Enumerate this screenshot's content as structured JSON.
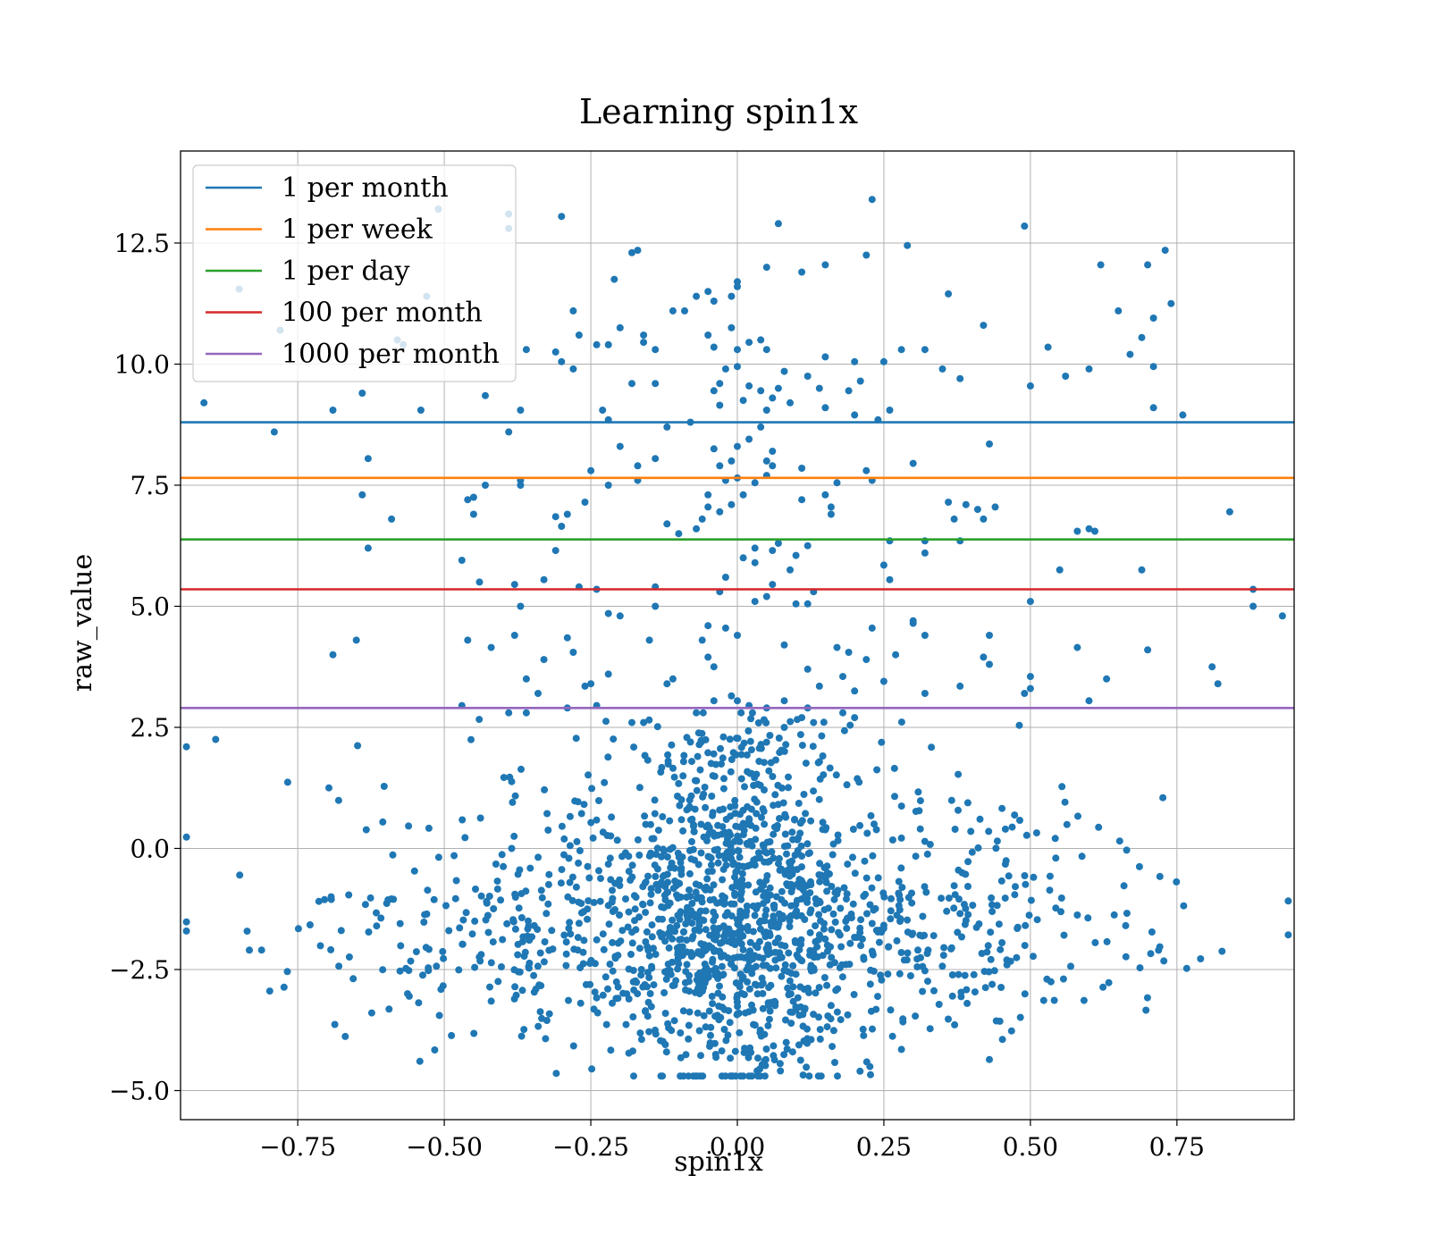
{
  "chart_data": {
    "type": "scatter",
    "title": "Learning spin1x",
    "xlabel": "spin1x",
    "ylabel": "raw_value",
    "xlim": [
      -0.95,
      0.95
    ],
    "ylim": [
      -5.6,
      14.4
    ],
    "grid": true,
    "legend_position": "top-left",
    "x_ticks": [
      -0.75,
      -0.5,
      -0.25,
      0.0,
      0.25,
      0.5,
      0.75
    ],
    "x_tick_labels": [
      "−0.75",
      "−0.50",
      "−0.25",
      "0.00",
      "0.25",
      "0.50",
      "0.75"
    ],
    "y_ticks": [
      -5.0,
      -2.5,
      0.0,
      2.5,
      5.0,
      7.5,
      10.0,
      12.5
    ],
    "y_tick_labels": [
      "−5.0",
      "−2.5",
      "0.0",
      "2.5",
      "5.0",
      "7.5",
      "10.0",
      "12.5"
    ],
    "scatter_color": "#1f77b4",
    "point_count": 2000,
    "points": [
      [
        -0.94,
        2.1
      ],
      [
        -0.89,
        2.25
      ],
      [
        -0.91,
        9.2
      ],
      [
        -0.79,
        8.6
      ],
      [
        -0.85,
        11.55
      ],
      [
        -0.78,
        10.7
      ],
      [
        -0.69,
        9.05
      ],
      [
        -0.64,
        9.4
      ],
      [
        -0.63,
        8.05
      ],
      [
        -0.64,
        7.3
      ],
      [
        -0.63,
        6.2
      ],
      [
        -0.59,
        6.8
      ],
      [
        -0.65,
        4.3
      ],
      [
        -0.69,
        4.0
      ],
      [
        -0.58,
        10.5
      ],
      [
        -0.57,
        10.4
      ],
      [
        -0.54,
        9.05
      ],
      [
        -0.53,
        11.4
      ],
      [
        -0.51,
        13.2
      ],
      [
        -0.39,
        13.1
      ],
      [
        -0.39,
        12.8
      ],
      [
        -0.3,
        13.05
      ],
      [
        -0.43,
        9.35
      ],
      [
        -0.37,
        9.05
      ],
      [
        -0.36,
        10.3
      ],
      [
        -0.31,
        10.25
      ],
      [
        -0.3,
        10.05
      ],
      [
        -0.28,
        9.9
      ],
      [
        -0.28,
        11.1
      ],
      [
        -0.27,
        10.6
      ],
      [
        -0.39,
        8.6
      ],
      [
        -0.37,
        7.6
      ],
      [
        -0.37,
        7.5
      ],
      [
        -0.43,
        7.5
      ],
      [
        -0.46,
        7.2
      ],
      [
        -0.45,
        7.25
      ],
      [
        -0.45,
        6.9
      ],
      [
        -0.47,
        5.95
      ],
      [
        -0.44,
        5.5
      ],
      [
        -0.38,
        5.45
      ],
      [
        -0.37,
        5.0
      ],
      [
        -0.33,
        5.55
      ],
      [
        -0.31,
        6.15
      ],
      [
        -0.31,
        6.85
      ],
      [
        -0.3,
        6.65
      ],
      [
        -0.29,
        6.9
      ],
      [
        -0.26,
        7.15
      ],
      [
        -0.27,
        5.4
      ],
      [
        -0.24,
        5.35
      ],
      [
        -0.42,
        4.15
      ],
      [
        -0.46,
        4.3
      ],
      [
        -0.38,
        4.4
      ],
      [
        -0.33,
        3.9
      ],
      [
        -0.36,
        3.5
      ],
      [
        -0.34,
        3.2
      ],
      [
        -0.29,
        4.35
      ],
      [
        -0.28,
        4.05
      ],
      [
        -0.25,
        3.4
      ],
      [
        -0.26,
        3.35
      ],
      [
        -0.36,
        2.8
      ],
      [
        -0.39,
        2.8
      ],
      [
        -0.47,
        2.95
      ],
      [
        -0.29,
        2.9
      ],
      [
        -0.24,
        2.95
      ],
      [
        -0.22,
        3.6
      ],
      [
        -0.24,
        10.4
      ],
      [
        -0.22,
        10.4
      ],
      [
        -0.23,
        9.05
      ],
      [
        -0.22,
        8.85
      ],
      [
        -0.21,
        11.75
      ],
      [
        -0.2,
        10.75
      ],
      [
        -0.18,
        12.3
      ],
      [
        -0.17,
        12.35
      ],
      [
        -0.16,
        10.45
      ],
      [
        -0.16,
        10.6
      ],
      [
        -0.14,
        10.3
      ],
      [
        -0.11,
        11.1
      ],
      [
        -0.09,
        11.1
      ],
      [
        -0.07,
        11.4
      ],
      [
        -0.05,
        11.5
      ],
      [
        -0.04,
        11.3
      ],
      [
        -0.01,
        11.4
      ],
      [
        0.0,
        11.7
      ],
      [
        0.0,
        11.6
      ],
      [
        -0.05,
        10.6
      ],
      [
        -0.04,
        10.35
      ],
      [
        -0.01,
        10.75
      ],
      [
        0.0,
        10.3
      ],
      [
        0.02,
        10.45
      ],
      [
        0.04,
        10.5
      ],
      [
        0.05,
        10.3
      ],
      [
        0.07,
        12.9
      ],
      [
        0.05,
        12.0
      ],
      [
        0.11,
        11.9
      ],
      [
        0.15,
        12.05
      ],
      [
        0.22,
        12.25
      ],
      [
        0.23,
        13.4
      ],
      [
        0.29,
        12.45
      ],
      [
        0.36,
        11.45
      ],
      [
        0.42,
        10.8
      ],
      [
        0.49,
        12.85
      ],
      [
        0.62,
        12.05
      ],
      [
        0.65,
        11.1
      ],
      [
        0.7,
        12.05
      ],
      [
        0.73,
        12.35
      ],
      [
        0.74,
        11.25
      ],
      [
        0.71,
        10.95
      ],
      [
        0.69,
        10.55
      ],
      [
        0.67,
        10.2
      ],
      [
        0.71,
        9.95
      ],
      [
        0.6,
        9.9
      ],
      [
        0.56,
        9.75
      ],
      [
        0.53,
        10.35
      ],
      [
        0.5,
        9.55
      ],
      [
        0.38,
        9.7
      ],
      [
        0.35,
        9.9
      ],
      [
        0.32,
        10.3
      ],
      [
        0.28,
        10.3
      ],
      [
        0.25,
        10.05
      ],
      [
        0.2,
        10.05
      ],
      [
        0.15,
        10.15
      ],
      [
        0.12,
        9.75
      ],
      [
        0.14,
        9.5
      ],
      [
        0.15,
        9.1
      ],
      [
        0.19,
        9.45
      ],
      [
        0.21,
        9.65
      ],
      [
        0.2,
        8.95
      ],
      [
        0.24,
        8.85
      ],
      [
        0.26,
        9.05
      ],
      [
        0.71,
        9.1
      ],
      [
        0.76,
        8.95
      ],
      [
        0.43,
        8.35
      ],
      [
        0.3,
        7.95
      ],
      [
        0.23,
        7.6
      ],
      [
        0.22,
        7.8
      ],
      [
        0.17,
        7.55
      ],
      [
        0.15,
        7.3
      ],
      [
        0.16,
        7.05
      ],
      [
        0.16,
        6.9
      ],
      [
        0.11,
        7.2
      ],
      [
        0.11,
        7.85
      ],
      [
        0.36,
        7.15
      ],
      [
        0.37,
        6.8
      ],
      [
        0.39,
        7.1
      ],
      [
        0.41,
        7.0
      ],
      [
        0.42,
        6.8
      ],
      [
        0.44,
        7.05
      ],
      [
        0.38,
        6.35
      ],
      [
        0.32,
        6.35
      ],
      [
        0.32,
        6.1
      ],
      [
        0.26,
        6.35
      ],
      [
        0.25,
        5.85
      ],
      [
        0.26,
        5.55
      ],
      [
        0.58,
        6.55
      ],
      [
        0.6,
        6.6
      ],
      [
        0.61,
        6.55
      ],
      [
        0.55,
        5.75
      ],
      [
        0.69,
        5.75
      ],
      [
        0.84,
        6.95
      ],
      [
        0.5,
        5.1
      ],
      [
        0.88,
        5.35
      ],
      [
        0.88,
        5.0
      ],
      [
        0.93,
        4.8
      ],
      [
        0.81,
        3.75
      ],
      [
        0.82,
        3.4
      ],
      [
        0.7,
        4.1
      ],
      [
        0.58,
        4.15
      ],
      [
        0.63,
        3.5
      ],
      [
        0.6,
        3.05
      ],
      [
        0.5,
        3.55
      ],
      [
        0.5,
        3.3
      ],
      [
        0.49,
        3.2
      ],
      [
        0.43,
        4.4
      ],
      [
        0.42,
        3.95
      ],
      [
        0.43,
        3.8
      ],
      [
        0.38,
        3.35
      ],
      [
        0.32,
        3.2
      ],
      [
        0.27,
        4.0
      ],
      [
        0.25,
        3.45
      ],
      [
        0.23,
        4.55
      ],
      [
        0.22,
        3.9
      ],
      [
        0.2,
        3.25
      ],
      [
        0.19,
        4.05
      ],
      [
        0.17,
        4.15
      ],
      [
        0.18,
        3.55
      ],
      [
        0.14,
        3.35
      ],
      [
        0.12,
        3.7
      ],
      [
        0.08,
        4.2
      ],
      [
        0.1,
        5.05
      ],
      [
        0.13,
        5.3
      ],
      [
        0.09,
        5.75
      ],
      [
        0.06,
        5.45
      ],
      [
        0.05,
        5.2
      ],
      [
        0.03,
        5.9
      ],
      [
        0.01,
        6.0
      ],
      [
        0.03,
        6.2
      ],
      [
        0.06,
        6.15
      ],
      [
        0.07,
        6.3
      ],
      [
        0.1,
        6.05
      ],
      [
        0.12,
        6.25
      ],
      [
        0.12,
        5.05
      ],
      [
        0.03,
        5.1
      ],
      [
        -0.02,
        5.6
      ],
      [
        -0.03,
        5.3
      ],
      [
        -0.05,
        4.6
      ],
      [
        -0.06,
        4.3
      ],
      [
        -0.05,
        3.95
      ],
      [
        -0.04,
        3.75
      ],
      [
        -0.02,
        4.55
      ],
      [
        0.0,
        4.4
      ],
      [
        -0.04,
        3.05
      ],
      [
        -0.01,
        3.15
      ],
      [
        0.0,
        3.05
      ],
      [
        0.02,
        2.95
      ],
      [
        0.05,
        2.9
      ],
      [
        0.08,
        3.05
      ],
      [
        0.11,
        2.7
      ],
      [
        0.13,
        2.6
      ],
      [
        0.18,
        2.8
      ],
      [
        0.2,
        2.7
      ],
      [
        0.0,
        9.95
      ],
      [
        -0.02,
        9.9
      ],
      [
        -0.03,
        9.6
      ],
      [
        -0.04,
        9.45
      ],
      [
        -0.03,
        9.15
      ],
      [
        0.01,
        9.25
      ],
      [
        0.02,
        9.55
      ],
      [
        0.04,
        9.45
      ],
      [
        0.06,
        9.3
      ],
      [
        0.07,
        9.5
      ],
      [
        0.08,
        9.85
      ],
      [
        0.09,
        9.2
      ],
      [
        0.05,
        9.05
      ],
      [
        0.04,
        8.7
      ],
      [
        0.02,
        8.45
      ],
      [
        0.0,
        8.3
      ],
      [
        -0.01,
        8.0
      ],
      [
        -0.03,
        7.9
      ],
      [
        -0.04,
        8.25
      ],
      [
        -0.02,
        7.6
      ],
      [
        0.0,
        7.65
      ],
      [
        0.03,
        7.55
      ],
      [
        0.05,
        7.7
      ],
      [
        0.06,
        7.9
      ],
      [
        0.06,
        8.2
      ],
      [
        0.05,
        8.0
      ],
      [
        -0.05,
        7.3
      ],
      [
        -0.05,
        7.05
      ],
      [
        -0.03,
        6.95
      ],
      [
        -0.01,
        7.1
      ],
      [
        0.01,
        7.3
      ],
      [
        -0.06,
        6.8
      ],
      [
        -0.07,
        6.6
      ],
      [
        -0.1,
        6.5
      ],
      [
        -0.12,
        6.7
      ],
      [
        -0.17,
        7.6
      ],
      [
        -0.17,
        7.9
      ],
      [
        -0.14,
        8.05
      ],
      [
        -0.12,
        8.7
      ],
      [
        -0.08,
        8.8
      ],
      [
        -0.2,
        8.3
      ],
      [
        -0.22,
        7.5
      ],
      [
        -0.25,
        7.8
      ],
      [
        -0.18,
        9.6
      ],
      [
        -0.14,
        9.6
      ],
      [
        -0.14,
        5.4
      ],
      [
        -0.14,
        5.0
      ],
      [
        -0.2,
        4.8
      ],
      [
        -0.22,
        4.85
      ],
      [
        -0.15,
        4.3
      ],
      [
        -0.12,
        3.4
      ],
      [
        -0.11,
        3.5
      ],
      [
        -0.07,
        2.8
      ],
      [
        -0.16,
        2.6
      ],
      [
        -0.18,
        2.6
      ],
      [
        0.3,
        4.7
      ],
      [
        0.3,
        4.65
      ],
      [
        0.32,
        4.4
      ],
      [
        0.12,
        2.9
      ],
      [
        0.08,
        2.5
      ]
    ],
    "reference_lines": [
      {
        "name": "1 per month",
        "y": 8.8,
        "color": "#1f77b4"
      },
      {
        "name": "1 per week",
        "y": 7.65,
        "color": "#ff7f0e"
      },
      {
        "name": "1 per day",
        "y": 6.38,
        "color": "#2ca02c"
      },
      {
        "name": "100 per month",
        "y": 5.35,
        "color": "#d62728"
      },
      {
        "name": "1000 per month",
        "y": 2.9,
        "color": "#9467bd"
      }
    ]
  }
}
